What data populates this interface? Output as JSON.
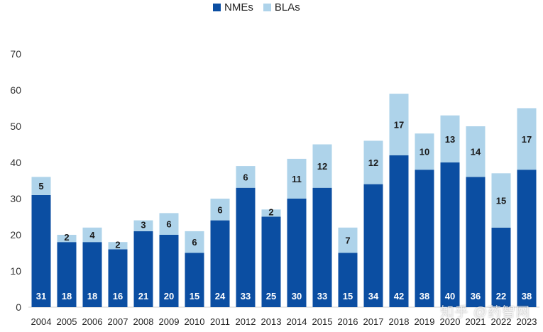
{
  "chart_data": {
    "type": "bar",
    "stacked": true,
    "title": "",
    "xlabel": "",
    "ylabel": "",
    "ylim": [
      0,
      70
    ],
    "yticks": [
      0,
      10,
      20,
      30,
      40,
      50,
      60,
      70
    ],
    "grid": false,
    "legend_position": "top-center",
    "categories": [
      "2004",
      "2005",
      "2006",
      "2007",
      "2008",
      "2009",
      "2010",
      "2011",
      "2012",
      "2013",
      "2014",
      "2015",
      "2016",
      "2017",
      "2018",
      "2019",
      "2020",
      "2021",
      "2022",
      "2023"
    ],
    "series": [
      {
        "name": "NMEs",
        "color": "#0b4ea2",
        "label_color": "#ffffff",
        "values": [
          31,
          18,
          18,
          16,
          21,
          20,
          15,
          24,
          33,
          25,
          30,
          33,
          15,
          34,
          42,
          38,
          40,
          36,
          22,
          38
        ]
      },
      {
        "name": "BLAs",
        "color": "#aed3ea",
        "label_color": "#1a1a1a",
        "values": [
          5,
          2,
          4,
          2,
          3,
          6,
          6,
          6,
          6,
          2,
          11,
          12,
          7,
          12,
          17,
          10,
          13,
          14,
          15,
          17
        ]
      }
    ]
  },
  "watermark": "知乎 @药智网"
}
